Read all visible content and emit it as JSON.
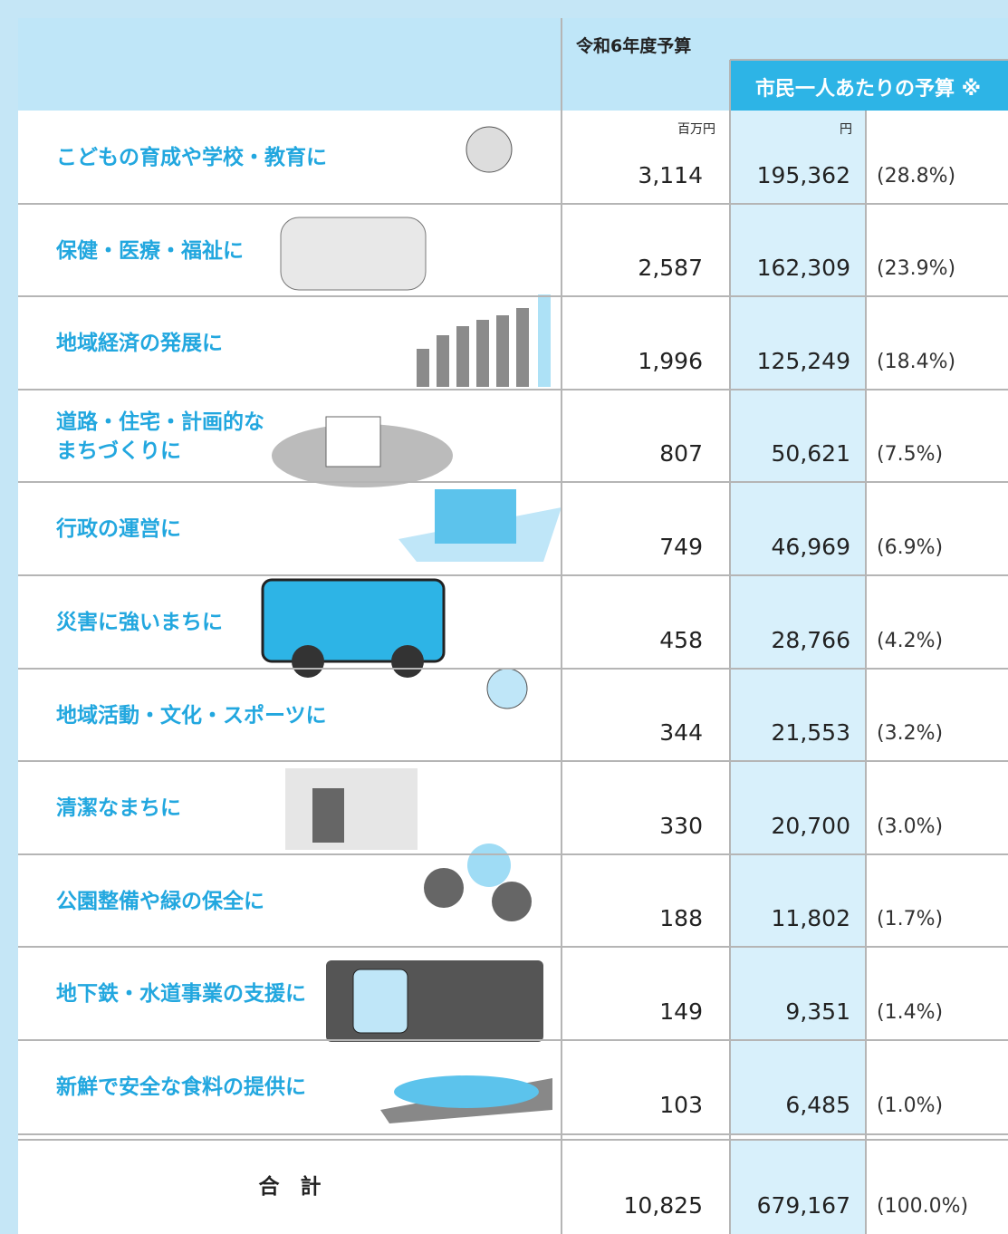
{
  "header": {
    "budget_title": "令和6年度予算",
    "per_capita_title": "市民一人あたりの予算 ※",
    "unit_total": "百万円",
    "unit_per_capita": "円"
  },
  "table": {
    "rows": [
      {
        "label": "こどもの育成や学校・教育に",
        "total": "3,114",
        "per_capita": "195,362",
        "share": "(28.8%)"
      },
      {
        "label": "保健・医療・福祉に",
        "total": "2,587",
        "per_capita": "162,309",
        "share": "(23.9%)"
      },
      {
        "label": "地域経済の発展に",
        "total": "1,996",
        "per_capita": "125,249",
        "share": "(18.4%)"
      },
      {
        "label": "道路・住宅・計画的な\nまちづくりに",
        "total": "807",
        "per_capita": "50,621",
        "share": "(7.5%)"
      },
      {
        "label": "行政の運営に",
        "total": "749",
        "per_capita": "46,969",
        "share": "(6.9%)"
      },
      {
        "label": "災害に強いまちに",
        "total": "458",
        "per_capita": "28,766",
        "share": "(4.2%)"
      },
      {
        "label": "地域活動・文化・スポーツに",
        "total": "344",
        "per_capita": "21,553",
        "share": "(3.2%)"
      },
      {
        "label": "清潔なまちに",
        "total": "330",
        "per_capita": "20,700",
        "share": "(3.0%)"
      },
      {
        "label": "公園整備や緑の保全に",
        "total": "188",
        "per_capita": "11,802",
        "share": "(1.7%)"
      },
      {
        "label": "地下鉄・水道事業の支援に",
        "total": "149",
        "per_capita": "9,351",
        "share": "(1.4%)"
      },
      {
        "label": "新鮮で安全な食料の提供に",
        "total": "103",
        "per_capita": "6,485",
        "share": "(1.0%)"
      }
    ],
    "total": {
      "label": "合　計",
      "total": "10,825",
      "per_capita": "679,167",
      "share": "(100.0%)"
    }
  }
}
